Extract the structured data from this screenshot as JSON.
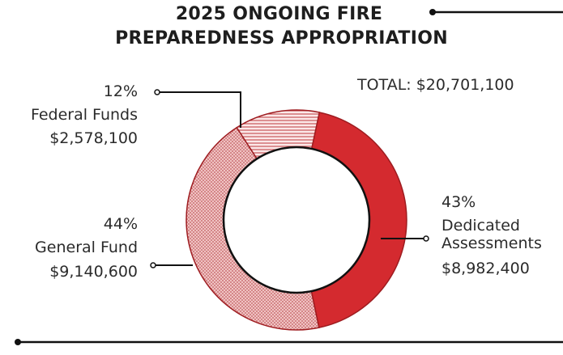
{
  "colors": {
    "dedicated": "#d42a2f",
    "general": "#f0c3c3",
    "federal": "#f4d0d0",
    "outline": "#9e1c20",
    "lines": "#111111"
  },
  "chart_data": {
    "type": "pie",
    "donut": true,
    "title_line1": "2025 ONGOING FIRE",
    "title_line2": "PREPAREDNESS APPROPRIATION",
    "total_label": "TOTAL: $20,701,100",
    "slices": [
      {
        "name": "Dedicated Assessments",
        "name_line1": "Dedicated",
        "name_line2": "Assessments",
        "percent_label": "43%",
        "amount_label": "$8,982,400",
        "value": 8982400,
        "color": "#d42a2f",
        "fill": "solid"
      },
      {
        "name": "General Fund",
        "percent_label": "44%",
        "amount_label": "$9,140,600",
        "value": 9140600,
        "color": "#f0c3c3",
        "fill": "dots"
      },
      {
        "name": "Federal Funds",
        "percent_label": "12%",
        "amount_label": "$2,578,100",
        "value": 2578100,
        "color": "#f4d0d0",
        "fill": "hatch"
      }
    ]
  }
}
